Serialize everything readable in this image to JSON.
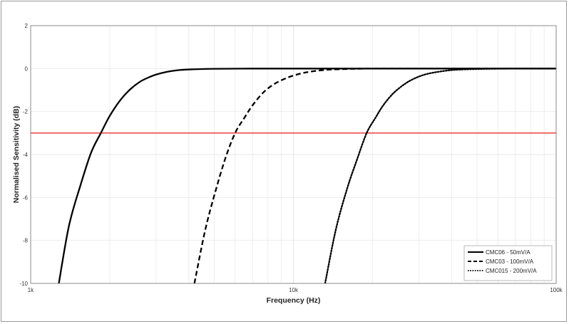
{
  "chart_data": {
    "type": "line",
    "title": "",
    "xlabel": "Frequency (Hz)",
    "ylabel": "Normalised Sensitivity (dB)",
    "xscale": "log",
    "xlim": [
      1000,
      100000
    ],
    "ylim": [
      -10,
      2
    ],
    "grid": true,
    "legend_position": "bottom-right",
    "x_ticks": [
      {
        "value": 1000,
        "label": "1k"
      },
      {
        "value": 10000,
        "label": "10k"
      },
      {
        "value": 100000,
        "label": "100k"
      }
    ],
    "y_ticks": [
      {
        "value": 2,
        "label": "2"
      },
      {
        "value": 0,
        "label": "0"
      },
      {
        "value": -2,
        "label": "-2"
      },
      {
        "value": -4,
        "label": "-4"
      },
      {
        "value": -6,
        "label": "-6"
      },
      {
        "value": -8,
        "label": "-8"
      },
      {
        "value": -10,
        "label": "-10"
      }
    ],
    "series": [
      {
        "name": "CMC06 - 50mV/A",
        "style": "solid",
        "color": "#000000",
        "x": [
          1280,
          1400,
          1550,
          1700,
          1850,
          2000,
          2200,
          2400,
          2600,
          2800,
          3000,
          3300,
          3600,
          4000,
          5000,
          7000,
          10000,
          30000,
          100000
        ],
        "y": [
          -10,
          -7.3,
          -5.4,
          -3.9,
          -3.0,
          -2.2,
          -1.45,
          -0.95,
          -0.62,
          -0.42,
          -0.28,
          -0.15,
          -0.08,
          -0.04,
          -0.01,
          0,
          0,
          0,
          0
        ]
      },
      {
        "name": "CMC03 - 100mV/A",
        "style": "dashed",
        "color": "#000000",
        "x": [
          4200,
          4600,
          5000,
          5500,
          6000,
          6500,
          7000,
          7700,
          8500,
          9500,
          10500,
          11500,
          13000,
          15000,
          20000,
          40000,
          100000
        ],
        "y": [
          -10,
          -7.6,
          -5.9,
          -4.2,
          -3.0,
          -2.3,
          -1.7,
          -1.1,
          -0.7,
          -0.42,
          -0.25,
          -0.15,
          -0.07,
          -0.03,
          0,
          0,
          0
        ]
      },
      {
        "name": "CMC015 - 200mV/A",
        "style": "dotted",
        "color": "#000000",
        "x": [
          13200,
          14500,
          16000,
          17500,
          19000,
          20500,
          22000,
          24000,
          26500,
          29000,
          32000,
          36000,
          41000,
          50000,
          70000,
          100000
        ],
        "y": [
          -10,
          -7.5,
          -5.6,
          -4.2,
          -3.0,
          -2.3,
          -1.7,
          -1.15,
          -0.72,
          -0.45,
          -0.26,
          -0.14,
          -0.06,
          -0.02,
          0,
          0
        ]
      }
    ],
    "reference_lines": [
      {
        "y": -3,
        "color": "#e8302a"
      }
    ],
    "colors": {
      "axis": "#6e6e6e",
      "grid": "#e3e3e3",
      "reference": "#e8302a"
    }
  }
}
